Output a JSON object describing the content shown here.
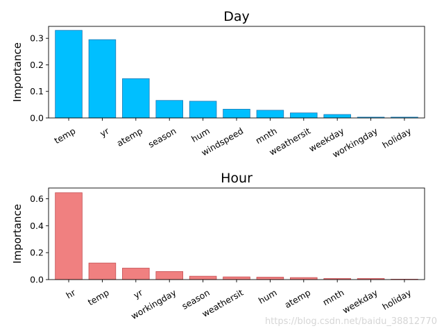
{
  "chart_data": [
    {
      "type": "bar",
      "title": "Day",
      "ylabel": "Importance",
      "xlabel": "",
      "ylim": [
        0,
        0.345
      ],
      "yticks": [
        0.0,
        0.1,
        0.2,
        0.3
      ],
      "ytick_labels": [
        "0.0",
        "0.1",
        "0.2",
        "0.3"
      ],
      "categories": [
        "temp",
        "yr",
        "atemp",
        "season",
        "hum",
        "windspeed",
        "mnth",
        "weathersit",
        "weekday",
        "workingday",
        "holiday"
      ],
      "values": [
        0.33,
        0.295,
        0.148,
        0.066,
        0.063,
        0.033,
        0.029,
        0.019,
        0.013,
        0.003,
        0.003
      ],
      "bar_color": "#00bfff",
      "edge_color": "#1f78b4",
      "grid": false
    },
    {
      "type": "bar",
      "title": "Hour",
      "ylabel": "Importance",
      "xlabel": "",
      "ylim": [
        0,
        0.68
      ],
      "yticks": [
        0.0,
        0.2,
        0.4,
        0.6
      ],
      "ytick_labels": [
        "0.0",
        "0.2",
        "0.4",
        "0.6"
      ],
      "categories": [
        "hr",
        "temp",
        "yr",
        "workingday",
        "season",
        "weathersit",
        "hum",
        "atemp",
        "mnth",
        "weekday",
        "holiday"
      ],
      "values": [
        0.645,
        0.123,
        0.085,
        0.06,
        0.025,
        0.02,
        0.018,
        0.015,
        0.008,
        0.008,
        0.003
      ],
      "bar_color": "#f08080",
      "edge_color": "#c44e52",
      "grid": false
    }
  ],
  "watermark": "https://blog.csdn.net/baidu_38812770"
}
